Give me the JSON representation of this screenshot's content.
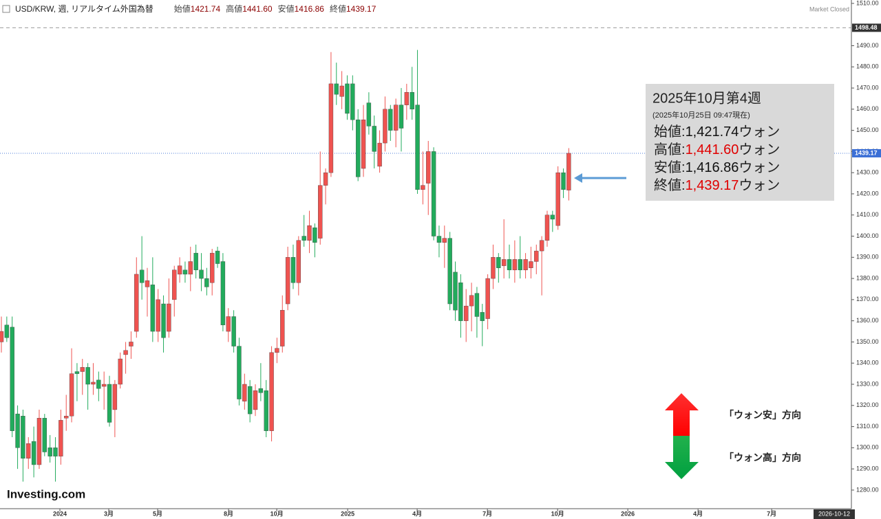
{
  "chart_data": {
    "type": "candlestick",
    "title": "USD/KRW, 週, リアルタイム外国為替",
    "header_items": [
      {
        "name": "始値",
        "text": "1421.74"
      },
      {
        "name": "高値",
        "text": "1441.60"
      },
      {
        "name": "安値",
        "text": "1416.86"
      },
      {
        "name": "終値",
        "text": "1439.17"
      }
    ],
    "status": "Market Closed",
    "brand": "Investing.com",
    "up_color": "#ef5350",
    "down_color": "#22ab5c",
    "open": [
      1350,
      1358,
      1357,
      1316,
      1315,
      1295,
      1303,
      1292,
      1314,
      1300,
      1300,
      1296,
      1314,
      1315,
      1336,
      1336,
      1338,
      1330,
      1332,
      1329,
      1330,
      1318,
      1330,
      1344,
      1348,
      1355,
      1384,
      1376,
      1377,
      1355,
      1368,
      1355,
      1370,
      1382,
      1384,
      1382,
      1392,
      1384,
      1380,
      1378,
      1393,
      1388,
      1355,
      1362,
      1348,
      1322,
      1329,
      1318,
      1328,
      1327,
      1308,
      1345,
      1348,
      1368,
      1390,
      1378,
      1400,
      1398,
      1404,
      1399,
      1424,
      1430,
      1472,
      1466,
      1472,
      1472,
      1455,
      1432,
      1463,
      1452,
      1433,
      1444,
      1460,
      1450,
      1462,
      1462,
      1468,
      1462,
      1422,
      1425,
      1440,
      1400,
      1397,
      1399,
      1383,
      1378,
      1360,
      1367,
      1373,
      1364,
      1361,
      1380,
      1390,
      1386,
      1389,
      1384,
      1389,
      1384,
      1385,
      1388,
      1393,
      1398,
      1410,
      1405,
      1430,
      1421.74
    ],
    "high": [
      1362,
      1362,
      1362,
      1320,
      1318,
      1305,
      1310,
      1318,
      1316,
      1306,
      1305,
      1318,
      1325,
      1347,
      1340,
      1342,
      1340,
      1340,
      1336,
      1336,
      1334,
      1332,
      1345,
      1350,
      1355,
      1390,
      1400,
      1385,
      1390,
      1375,
      1372,
      1380,
      1386,
      1390,
      1388,
      1395,
      1396,
      1392,
      1385,
      1394,
      1395,
      1392,
      1366,
      1365,
      1352,
      1335,
      1332,
      1330,
      1340,
      1332,
      1348,
      1352,
      1372,
      1395,
      1396,
      1400,
      1410,
      1412,
      1406,
      1440,
      1432,
      1487,
      1482,
      1478,
      1476,
      1476,
      1460,
      1462,
      1468,
      1457,
      1450,
      1466,
      1462,
      1465,
      1470,
      1472,
      1480,
      1488,
      1440,
      1445,
      1442,
      1405,
      1405,
      1402,
      1388,
      1382,
      1375,
      1378,
      1376,
      1368,
      1382,
      1396,
      1392,
      1408,
      1396,
      1398,
      1400,
      1392,
      1395,
      1396,
      1400,
      1412,
      1412,
      1433,
      1432,
      1441.6
    ],
    "low": [
      1345,
      1350,
      1305,
      1290,
      1284,
      1290,
      1286,
      1290,
      1296,
      1293,
      1284,
      1292,
      1308,
      1312,
      1322,
      1325,
      1318,
      1325,
      1322,
      1318,
      1310,
      1305,
      1328,
      1335,
      1342,
      1352,
      1370,
      1362,
      1350,
      1350,
      1345,
      1352,
      1362,
      1378,
      1378,
      1374,
      1380,
      1374,
      1372,
      1372,
      1385,
      1355,
      1350,
      1345,
      1320,
      1318,
      1312,
      1315,
      1322,
      1305,
      1303,
      1340,
      1345,
      1365,
      1375,
      1372,
      1395,
      1392,
      1390,
      1396,
      1415,
      1428,
      1462,
      1460,
      1455,
      1450,
      1426,
      1428,
      1448,
      1432,
      1430,
      1440,
      1445,
      1442,
      1440,
      1455,
      1455,
      1420,
      1415,
      1410,
      1398,
      1390,
      1385,
      1365,
      1360,
      1352,
      1350,
      1355,
      1352,
      1348,
      1356,
      1375,
      1378,
      1380,
      1380,
      1378,
      1380,
      1380,
      1380,
      1382,
      1372,
      1395,
      1402,
      1403,
      1418,
      1416.86
    ],
    "close": [
      1355,
      1352,
      1308,
      1300,
      1295,
      1302,
      1292,
      1314,
      1298,
      1296,
      1296,
      1313,
      1315,
      1335,
      1335,
      1338,
      1330,
      1331,
      1328,
      1330,
      1312,
      1330,
      1342,
      1346,
      1350,
      1382,
      1378,
      1379,
      1355,
      1370,
      1352,
      1368,
      1384,
      1386,
      1382,
      1388,
      1384,
      1380,
      1376,
      1392,
      1387,
      1358,
      1362,
      1348,
      1323,
      1330,
      1316,
      1327,
      1326,
      1308,
      1345,
      1347,
      1365,
      1390,
      1378,
      1398,
      1398,
      1405,
      1397,
      1424,
      1430,
      1472,
      1467,
      1471,
      1458,
      1455,
      1428,
      1455,
      1452,
      1440,
      1444,
      1460,
      1450,
      1462,
      1451,
      1468,
      1460,
      1422,
      1424,
      1440,
      1400,
      1397,
      1399,
      1368,
      1365,
      1360,
      1367,
      1372,
      1362,
      1360,
      1380,
      1390,
      1385,
      1389,
      1384,
      1389,
      1384,
      1389,
      1388,
      1393,
      1398,
      1410,
      1408,
      1430,
      1422,
      1439.17
    ],
    "xlim": [
      -0.255,
      157.3
    ],
    "xticks": [
      {
        "value": 10.83,
        "label": "2024"
      },
      {
        "value": 19.87,
        "label": "3月"
      },
      {
        "value": 28.92,
        "label": "5月"
      },
      {
        "value": 42.04,
        "label": "8月"
      },
      {
        "value": 50.96,
        "label": "10月"
      },
      {
        "value": 64.08,
        "label": "2025"
      },
      {
        "value": 76.94,
        "label": "4月"
      },
      {
        "value": 89.94,
        "label": "7月"
      },
      {
        "value": 102.93,
        "label": "10月"
      },
      {
        "value": 115.92,
        "label": "2026"
      },
      {
        "value": 128.92,
        "label": "4月"
      },
      {
        "value": 142.55,
        "label": "7月"
      }
    ],
    "ylim": [
      1271.2,
      1511.6
    ],
    "yticks": [
      {
        "value": 1280,
        "label": "1280.00"
      },
      {
        "value": 1290,
        "label": "1290.00"
      },
      {
        "value": 1300,
        "label": "1300.00"
      },
      {
        "value": 1310,
        "label": "1310.00"
      },
      {
        "value": 1320,
        "label": "1320.00"
      },
      {
        "value": 1330,
        "label": "1330.00"
      },
      {
        "value": 1340,
        "label": "1340.00"
      },
      {
        "value": 1350,
        "label": "1350.00"
      },
      {
        "value": 1360,
        "label": "1360.00"
      },
      {
        "value": 1370,
        "label": "1370.00"
      },
      {
        "value": 1380,
        "label": "1380.00"
      },
      {
        "value": 1390,
        "label": "1390.00"
      },
      {
        "value": 1400,
        "label": "1400.00"
      },
      {
        "value": 1410,
        "label": "1410.00"
      },
      {
        "value": 1420,
        "label": "1420.00"
      },
      {
        "value": 1430,
        "label": "1430.00"
      },
      {
        "value": 1440,
        "label": "1440.00"
      },
      {
        "value": 1450,
        "label": "1450.00"
      },
      {
        "value": 1460,
        "label": "1460.00"
      },
      {
        "value": 1470,
        "label": "1470.00"
      },
      {
        "value": 1480,
        "label": "1480.00"
      },
      {
        "value": 1490,
        "label": "1490.00"
      },
      {
        "value": 1510,
        "label": "1510.00"
      }
    ],
    "high_line": {
      "value": 1498.48,
      "label": "1498.48"
    },
    "last_line": {
      "value": 1439.17,
      "label": "1439.17"
    },
    "crosshair_date": "2026-10-12",
    "annotation": {
      "title": "2025年10月第4週",
      "subtitle": "(2025年10月25日 09:47現在)",
      "lines": [
        {
          "name": "始値:",
          "value": "1,421.74",
          "unit": "ウォン",
          "color": "#111111"
        },
        {
          "name": "高値:",
          "value": "1,441.60",
          "unit": "ウォン",
          "color": "#e00000"
        },
        {
          "name": "安値:",
          "value": "1,416.86",
          "unit": "ウォン",
          "color": "#111111"
        },
        {
          "name": "終値:",
          "value": "1,439.17",
          "unit": "ウォン",
          "color": "#e00000"
        }
      ]
    },
    "direction_up": "「ウォン安」方向",
    "direction_down": "「ウォン高」方向"
  }
}
